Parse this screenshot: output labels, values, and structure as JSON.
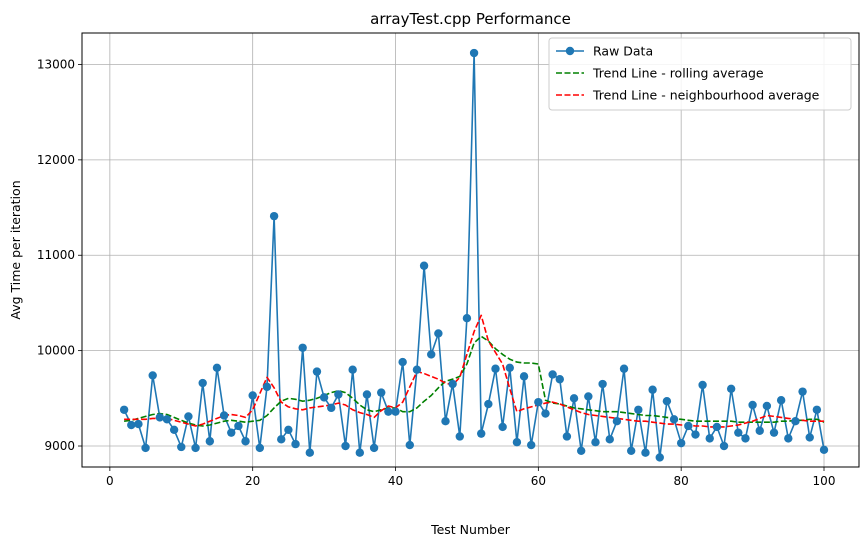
{
  "chart_data": {
    "type": "line",
    "title": "arrayTest.cpp Performance",
    "xlabel": "Test Number",
    "ylabel": "Avg Time per iteration",
    "xlim": [
      -3.9,
      104.9
    ],
    "ylim": [
      8780,
      13330
    ],
    "xticks": [
      0,
      20,
      40,
      60,
      80,
      100
    ],
    "yticks": [
      9000,
      10000,
      11000,
      12000,
      13000
    ],
    "grid": true,
    "legend_position": "top-right",
    "x": [
      2,
      3,
      4,
      5,
      6,
      7,
      8,
      9,
      10,
      11,
      12,
      13,
      14,
      15,
      16,
      17,
      18,
      19,
      20,
      21,
      22,
      23,
      24,
      25,
      26,
      27,
      28,
      29,
      30,
      31,
      32,
      33,
      34,
      35,
      36,
      37,
      38,
      39,
      40,
      41,
      42,
      43,
      44,
      45,
      46,
      47,
      48,
      49,
      50,
      51,
      52,
      53,
      54,
      55,
      56,
      57,
      58,
      59,
      60,
      61,
      62,
      63,
      64,
      65,
      66,
      67,
      68,
      69,
      70,
      71,
      72,
      73,
      74,
      75,
      76,
      77,
      78,
      79,
      80,
      81,
      82,
      83,
      84,
      85,
      86,
      87,
      88,
      89,
      90,
      91,
      92,
      93,
      94,
      95,
      96,
      97,
      98,
      99,
      100
    ],
    "series": [
      {
        "name": "Raw Data",
        "color": "#1f77b4",
        "style": "solid-markers",
        "values": [
          9380,
          9220,
          9230,
          8980,
          9740,
          9300,
          9280,
          9170,
          8990,
          9310,
          8980,
          9660,
          9050,
          9820,
          9320,
          9140,
          9210,
          9050,
          9530,
          8980,
          9620,
          11410,
          9070,
          9170,
          9020,
          10030,
          8930,
          9780,
          9510,
          9400,
          9540,
          9000,
          9800,
          8930,
          9540,
          8980,
          9560,
          9360,
          9360,
          9880,
          9010,
          9800,
          10890,
          9960,
          10180,
          9260,
          9650,
          9100,
          10340,
          13120,
          9130,
          9440,
          9810,
          9200,
          9820,
          9040,
          9730,
          9010,
          9460,
          9340,
          9750,
          9700,
          9100,
          9500,
          8950,
          9520,
          9040,
          9650,
          9070,
          9260,
          9810,
          8950,
          9380,
          8930,
          9590,
          8880,
          9470,
          9280,
          9030,
          9210,
          9120,
          9640,
          9080,
          9200,
          9000,
          9600,
          9140,
          9080,
          9430,
          9160,
          9420,
          9140,
          9480,
          9080,
          9260,
          9570,
          9090,
          9380,
          8960
        ]
      },
      {
        "name": "Trend Line - rolling average",
        "color": "#008000",
        "style": "dashed",
        "values": [
          9260,
          9270,
          9290,
          9310,
          9330,
          9340,
          9330,
          9300,
          9270,
          9240,
          9220,
          9210,
          9220,
          9240,
          9260,
          9270,
          9260,
          9250,
          9260,
          9270,
          9320,
          9400,
          9470,
          9500,
          9490,
          9470,
          9480,
          9500,
          9530,
          9560,
          9580,
          9560,
          9500,
          9430,
          9380,
          9360,
          9380,
          9400,
          9400,
          9360,
          9360,
          9400,
          9470,
          9530,
          9610,
          9680,
          9700,
          9730,
          9860,
          10080,
          10150,
          10100,
          10020,
          9960,
          9910,
          9880,
          9870,
          9870,
          9860,
          9480,
          9450,
          9440,
          9420,
          9400,
          9390,
          9380,
          9370,
          9360,
          9360,
          9360,
          9350,
          9340,
          9330,
          9320,
          9320,
          9310,
          9300,
          9290,
          9280,
          9270,
          9260,
          9260,
          9260,
          9260,
          9260,
          9260,
          9250,
          9250,
          9250,
          9250,
          9250,
          9250,
          9260,
          9260,
          9270,
          9270,
          9280,
          9280,
          9250
        ]
      },
      {
        "name": "Trend Line - neighbourhood average",
        "color": "#ff0000",
        "style": "dashed",
        "values": [
          9280,
          9280,
          9280,
          9280,
          9290,
          9290,
          9290,
          9270,
          9250,
          9230,
          9210,
          9230,
          9260,
          9290,
          9320,
          9330,
          9320,
          9300,
          9380,
          9550,
          9720,
          9610,
          9460,
          9410,
          9390,
          9380,
          9400,
          9410,
          9420,
          9430,
          9450,
          9430,
          9380,
          9350,
          9330,
          9300,
          9370,
          9420,
          9400,
          9460,
          9620,
          9780,
          9760,
          9730,
          9700,
          9660,
          9640,
          9720,
          9960,
          10200,
          10370,
          10100,
          9980,
          9860,
          9600,
          9360,
          9390,
          9410,
          9430,
          9450,
          9460,
          9440,
          9410,
          9380,
          9350,
          9330,
          9320,
          9310,
          9300,
          9290,
          9280,
          9270,
          9260,
          9260,
          9250,
          9240,
          9230,
          9230,
          9220,
          9220,
          9210,
          9210,
          9200,
          9200,
          9200,
          9210,
          9220,
          9240,
          9260,
          9290,
          9320,
          9310,
          9300,
          9290,
          9280,
          9270,
          9260,
          9260,
          9260
        ]
      }
    ]
  }
}
